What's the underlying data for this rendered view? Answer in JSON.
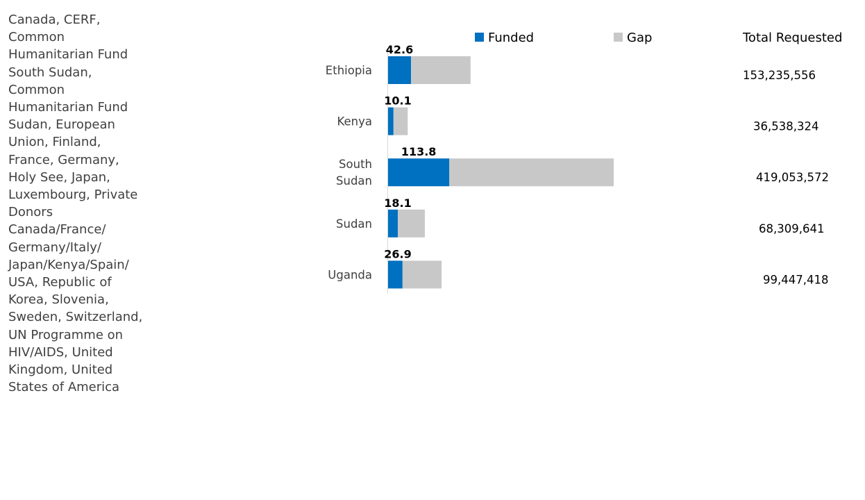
{
  "donors_text": [
    "Canada, CERF,",
    "Common",
    "Humanitarian Fund",
    "South Sudan,",
    "Common",
    "Humanitarian Fund",
    "Sudan, European",
    "Union, Finland,",
    "France, Germany,",
    "Holy See, Japan,",
    "Luxembourg, Private",
    "Donors",
    "Canada/France/",
    "Germany/Italy/",
    "Japan/Kenya/Spain/",
    "USA, Republic of",
    "Korea, Slovenia,",
    "Sweden, Switzerland,",
    "UN Programme on",
    "HIV/AIDS, United",
    "Kingdom, United",
    "States of America"
  ],
  "chart_data": {
    "type": "bar",
    "orientation": "horizontal",
    "stacked": true,
    "categories": [
      "Ethiopia",
      "Kenya",
      "South Sudan",
      "Sudan",
      "Uganda"
    ],
    "series": [
      {
        "name": "Funded",
        "color": "#0070C0",
        "values": [
          42.6,
          10.1,
          113.8,
          18.1,
          26.9
        ]
      },
      {
        "name": "Gap",
        "color": "#C8C8C8",
        "values": [
          110.6,
          26.4,
          305.3,
          50.2,
          72.5
        ]
      }
    ],
    "data_labels": [
      "42.6",
      "10.1",
      "113.8",
      "18.1",
      "26.9"
    ],
    "total_requested_header": "Total Requested",
    "total_requested": [
      "153,235,556",
      "36,538,324",
      "419,053,572",
      "68,309,641",
      "99,447,418"
    ],
    "legend_position": "top",
    "grid": false,
    "xlim": [
      0,
      419.1
    ]
  }
}
